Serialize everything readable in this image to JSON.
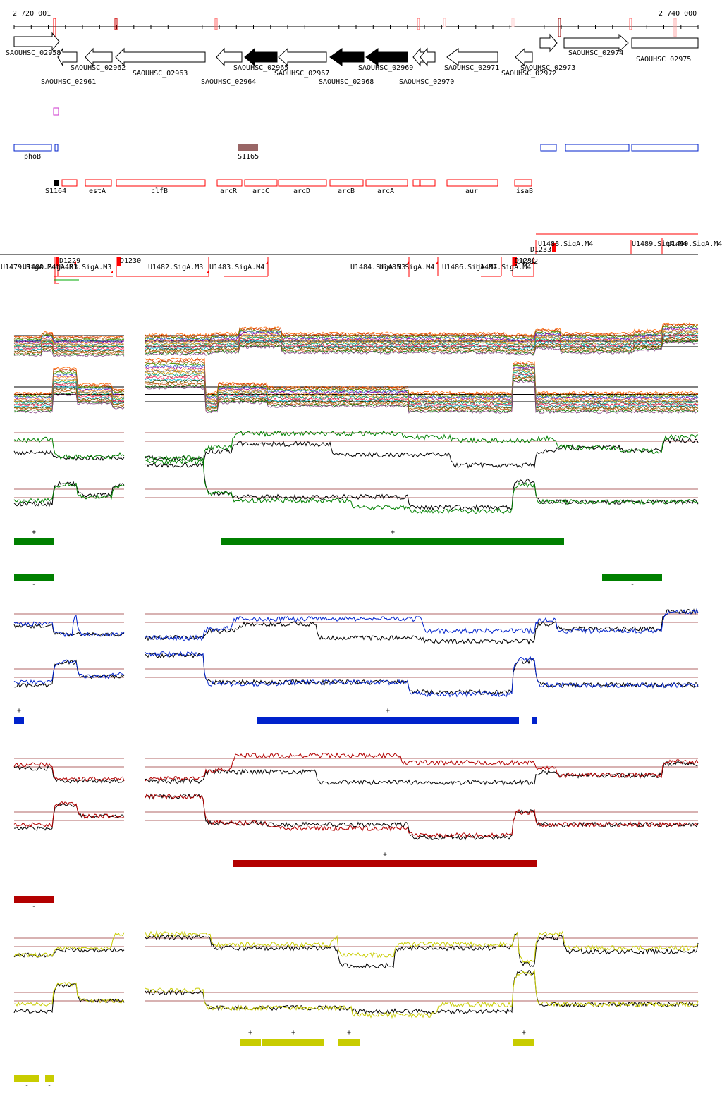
{
  "genome_browser": {
    "coordinate_start": "2 720 001",
    "coordinate_end": "2 740 000",
    "genes": [
      {
        "label": "SAOUHSC_02958",
        "strand": "+",
        "fill": "white"
      },
      {
        "label": "SAOUHSC_02961",
        "strand": "-",
        "fill": "white"
      },
      {
        "label": "SAOUHSC_02962",
        "strand": "-",
        "fill": "white"
      },
      {
        "label": "SAOUHSC_02963",
        "strand": "-",
        "fill": "white"
      },
      {
        "label": "SAOUHSC_02964",
        "strand": "-",
        "fill": "white"
      },
      {
        "label": "SAOUHSC_02965",
        "strand": "-",
        "fill": "black"
      },
      {
        "label": "SAOUHSC_02967",
        "strand": "-",
        "fill": "white"
      },
      {
        "label": "SAOUHSC_02968",
        "strand": "-",
        "fill": "black"
      },
      {
        "label": "SAOUHSC_02969",
        "strand": "-",
        "fill": "black"
      },
      {
        "label": "SAOUHSC_02970",
        "strand": "-",
        "fill": "white"
      },
      {
        "label": "SAOUHSC_02971",
        "strand": "-",
        "fill": "white"
      },
      {
        "label": "SAOUHSC_02972",
        "strand": "-",
        "fill": "white"
      },
      {
        "label": "SAOUHSC_02973",
        "strand": "+",
        "fill": "white"
      },
      {
        "label": "SAOUHSC_02974",
        "strand": "+",
        "fill": "white"
      },
      {
        "label": "SAOUHSC_02975",
        "strand": "+",
        "fill": "white"
      }
    ],
    "blue_features": [
      {
        "label": "phoB"
      }
    ],
    "brown_features": [
      {
        "label": "S1165"
      }
    ],
    "black_features": [
      {
        "label": "S1164"
      }
    ],
    "red_features": [
      {
        "label": "estA"
      },
      {
        "label": "clfB"
      },
      {
        "label": "arcR"
      },
      {
        "label": "arcC"
      },
      {
        "label": "arcD"
      },
      {
        "label": "arcB"
      },
      {
        "label": "arcA"
      },
      {
        "label": "aur"
      },
      {
        "label": "isaB"
      }
    ],
    "upstream_labels_top": [
      {
        "label": "U1488.SigA.M4"
      },
      {
        "label": "D1233"
      },
      {
        "label": "U1489.SigA.M4"
      },
      {
        "label": "U1490.SigA.M4"
      }
    ],
    "upstream_labels_bottom": [
      {
        "label": "U1479.SigA.M4"
      },
      {
        "label": "U1480.SigA.M3"
      },
      {
        "label": "U1481.SigA.M3"
      },
      {
        "label": "D1229"
      },
      {
        "label": "D1230"
      },
      {
        "label": "U1482.SigA.M3"
      },
      {
        "label": "U1483.SigA.M4"
      },
      {
        "label": "U1484.SigA.M3"
      },
      {
        "label": "U1485.SigA.M4"
      },
      {
        "label": "U1486.SigA.M4"
      },
      {
        "label": "U1487.SigA.M4"
      },
      {
        "label": "D1231"
      },
      {
        "label": "D1232"
      }
    ],
    "track_colors": {
      "green": "#008000",
      "blue": "#0022cc",
      "red": "#b30000",
      "yellow": "#c8cc00",
      "gene_red": "#ff0000",
      "brown": "#996666"
    },
    "segment_marks": {
      "plus": "+",
      "minus": "-"
    }
  }
}
